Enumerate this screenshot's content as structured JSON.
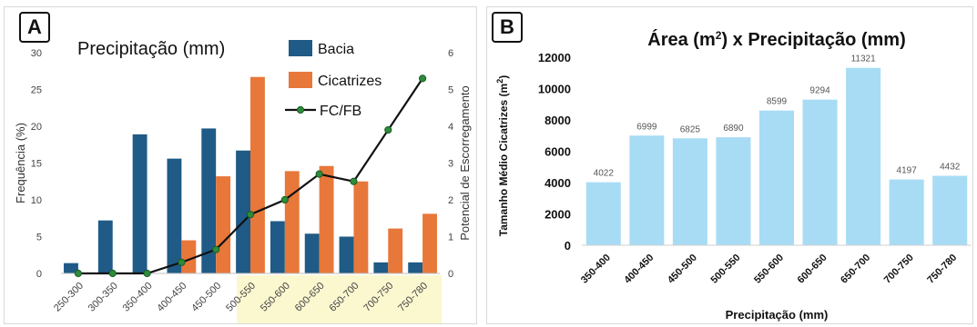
{
  "panels": {
    "a": {
      "letter": "A"
    },
    "b": {
      "letter": "B"
    }
  },
  "colors": {
    "bacia": "#1f5b86",
    "cicatrizes": "#e8773a",
    "fcfb_line": "#111111",
    "fcfb_marker": "#2e8b3a",
    "bar_b": "#a8dcf5",
    "highlight": "#fbf7cf",
    "label_gray": "#555555"
  },
  "chart_data": [
    {
      "id": "A",
      "type": "bar",
      "title": "Precipitação (mm)",
      "xlabel": "",
      "ylabel": "Frequência (%)",
      "ylabel_right": "Potencial de Escorregamento",
      "categories": [
        "250-300",
        "300-350",
        "350-400",
        "400-450",
        "450-500",
        "500-550",
        "550-600",
        "600-650",
        "650-700",
        "700-750",
        "750-780"
      ],
      "ylim": [
        0,
        30
      ],
      "yticks": [
        0,
        5,
        10,
        15,
        20,
        25,
        30
      ],
      "ylim_right": [
        0,
        6
      ],
      "yticks_right": [
        0,
        1,
        2,
        3,
        4,
        5,
        6
      ],
      "highlight_categories": [
        "500-550",
        "550-600",
        "600-650",
        "650-700",
        "700-750",
        "750-780"
      ],
      "series": [
        {
          "name": "Bacia",
          "kind": "bar",
          "axis": "left",
          "values": [
            1.4,
            7.2,
            18.9,
            15.6,
            19.7,
            16.7,
            7.1,
            5.4,
            5.0,
            1.5,
            1.5
          ]
        },
        {
          "name": "Cicatrizes",
          "kind": "bar",
          "axis": "left",
          "values": [
            0,
            0,
            0,
            4.5,
            13.2,
            26.7,
            13.9,
            14.6,
            12.5,
            6.1,
            8.1
          ]
        },
        {
          "name": "FC/FB",
          "kind": "line",
          "axis": "right",
          "values": [
            0,
            0,
            0,
            0.3,
            0.65,
            1.6,
            2.0,
            2.7,
            2.5,
            3.9,
            5.3
          ]
        }
      ],
      "legend": [
        "Bacia",
        "Cicatrizes",
        "FC/FB"
      ],
      "legend_position": "top-right",
      "grid": false
    },
    {
      "id": "B",
      "type": "bar",
      "title": "Área (m²) x Precipitação (mm)",
      "xlabel": "Precipitação (mm)",
      "ylabel": "Tamanho Médio Cicatrizes (m²)",
      "categories": [
        "350-400",
        "400-450",
        "450-500",
        "500-550",
        "550-600",
        "600-650",
        "650-700",
        "700-750",
        "750-780"
      ],
      "values": [
        4022,
        6999,
        6825,
        6890,
        8599,
        9294,
        11321,
        4197,
        4432
      ],
      "data_labels": [
        "4022",
        "6999",
        "6825",
        "6890",
        "8599",
        "9294",
        "11321",
        "4197",
        "4432"
      ],
      "ylim": [
        0,
        12000
      ],
      "yticks": [
        0,
        2000,
        4000,
        6000,
        8000,
        10000,
        12000
      ],
      "grid": false
    }
  ]
}
